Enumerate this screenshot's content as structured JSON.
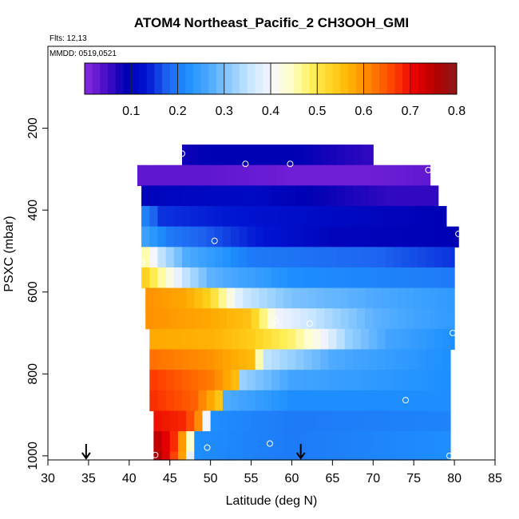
{
  "chart_data": {
    "type": "heatmap",
    "title": "ATOM4 Northeast_Pacific_2 CH3OOH_GMI",
    "flights_label": "Flts: 12,13",
    "date_label": "MMDD: 0519,0521",
    "xlabel": "Latitude (deg N)",
    "ylabel": "PSXC (mbar)",
    "xlim": [
      30,
      85
    ],
    "ylim": [
      1010,
      0
    ],
    "x_ticks": [
      30,
      35,
      40,
      45,
      50,
      55,
      60,
      65,
      70,
      75,
      80,
      85
    ],
    "y_ticks": [
      200,
      400,
      600,
      800,
      1000
    ],
    "colorbar": {
      "range": [
        0,
        0.8
      ],
      "ticks": [
        0.1,
        0.2,
        0.3,
        0.4,
        0.5,
        0.6,
        0.7,
        0.8
      ],
      "colors": [
        "#8a2be2",
        "#4b0ec8",
        "#0000b4",
        "#0014d2",
        "#1e64f0",
        "#1e90ff",
        "#4aa8ff",
        "#8ccaff",
        "#c8e6ff",
        "#f5f5ff",
        "#ffffc8",
        "#ffef5a",
        "#ffd21e",
        "#ffaa00",
        "#ff7800",
        "#ff3c00",
        "#e60000",
        "#b40000",
        "#8b1a1a"
      ]
    },
    "layers": [
      {
        "p_top": 240,
        "p_bot": 290,
        "lat_min": 46.5,
        "lat_max": 70,
        "values": [
          [
            46.5,
            0.08
          ],
          [
            50,
            0.09
          ],
          [
            60,
            0.09
          ],
          [
            70,
            0.06
          ]
        ]
      },
      {
        "p_top": 290,
        "p_bot": 340,
        "lat_min": 41,
        "lat_max": 77,
        "values": [
          [
            41,
            0.03
          ],
          [
            50,
            0.03
          ],
          [
            60,
            0.02
          ],
          [
            70,
            0.02
          ],
          [
            77,
            0.03
          ]
        ]
      },
      {
        "p_top": 340,
        "p_bot": 390,
        "lat_min": 41.5,
        "lat_max": 78,
        "values": [
          [
            41.5,
            0.1
          ],
          [
            55,
            0.11
          ],
          [
            65,
            0.08
          ],
          [
            72,
            0.06
          ],
          [
            78,
            0.06
          ]
        ]
      },
      {
        "p_top": 390,
        "p_bot": 440,
        "lat_min": 41.5,
        "lat_max": 79,
        "values": [
          [
            41.5,
            0.22
          ],
          [
            44,
            0.15
          ],
          [
            55,
            0.13
          ],
          [
            65,
            0.11
          ],
          [
            79,
            0.09
          ]
        ]
      },
      {
        "p_top": 440,
        "p_bot": 490,
        "lat_min": 41.5,
        "lat_max": 80.5,
        "values": [
          [
            41.5,
            0.26
          ],
          [
            45,
            0.2
          ],
          [
            55,
            0.14
          ],
          [
            65,
            0.1
          ],
          [
            80.5,
            0.09
          ]
        ]
      },
      {
        "p_top": 490,
        "p_bot": 540,
        "lat_min": 41.5,
        "lat_max": 80,
        "values": [
          [
            41.5,
            0.48
          ],
          [
            44,
            0.35
          ],
          [
            47,
            0.27
          ],
          [
            55,
            0.2
          ],
          [
            70,
            0.18
          ],
          [
            80,
            0.15
          ]
        ]
      },
      {
        "p_top": 540,
        "p_bot": 590,
        "lat_min": 41.5,
        "lat_max": 80,
        "values": [
          [
            41.5,
            0.55
          ],
          [
            44,
            0.46
          ],
          [
            47,
            0.35
          ],
          [
            50,
            0.28
          ],
          [
            60,
            0.22
          ],
          [
            80,
            0.2
          ]
        ]
      },
      {
        "p_top": 590,
        "p_bot": 640,
        "lat_min": 42,
        "lat_max": 80,
        "values": [
          [
            42,
            0.6
          ],
          [
            47,
            0.58
          ],
          [
            50,
            0.53
          ],
          [
            54,
            0.36
          ],
          [
            60,
            0.3
          ],
          [
            80,
            0.24
          ]
        ]
      },
      {
        "p_top": 640,
        "p_bot": 690,
        "lat_min": 42,
        "lat_max": 80,
        "values": [
          [
            42,
            0.6
          ],
          [
            50,
            0.58
          ],
          [
            55,
            0.55
          ],
          [
            58,
            0.4
          ],
          [
            65,
            0.33
          ],
          [
            70,
            0.28
          ],
          [
            80,
            0.24
          ]
        ]
      },
      {
        "p_top": 690,
        "p_bot": 740,
        "lat_min": 42.5,
        "lat_max": 80,
        "values": [
          [
            42.5,
            0.58
          ],
          [
            50,
            0.57
          ],
          [
            55,
            0.54
          ],
          [
            60,
            0.48
          ],
          [
            63,
            0.42
          ],
          [
            67,
            0.32
          ],
          [
            72,
            0.26
          ],
          [
            80,
            0.22
          ]
        ]
      },
      {
        "p_top": 740,
        "p_bot": 790,
        "lat_min": 42.5,
        "lat_max": 79.5,
        "values": [
          [
            42.5,
            0.63
          ],
          [
            50,
            0.6
          ],
          [
            55,
            0.56
          ],
          [
            57,
            0.35
          ],
          [
            65,
            0.27
          ],
          [
            79.5,
            0.22
          ]
        ]
      },
      {
        "p_top": 790,
        "p_bot": 840,
        "lat_min": 42.5,
        "lat_max": 79.5,
        "values": [
          [
            42.5,
            0.67
          ],
          [
            50,
            0.62
          ],
          [
            53,
            0.56
          ],
          [
            54,
            0.32
          ],
          [
            60,
            0.26
          ],
          [
            79.5,
            0.22
          ]
        ]
      },
      {
        "p_top": 840,
        "p_bot": 890,
        "lat_min": 42.5,
        "lat_max": 79.5,
        "values": [
          [
            42.5,
            0.68
          ],
          [
            48,
            0.64
          ],
          [
            51,
            0.55
          ],
          [
            52,
            0.27
          ],
          [
            60,
            0.22
          ],
          [
            79.5,
            0.22
          ]
        ]
      },
      {
        "p_top": 890,
        "p_bot": 940,
        "lat_min": 43,
        "lat_max": 79.5,
        "values": [
          [
            43,
            0.7
          ],
          [
            47,
            0.68
          ],
          [
            49,
            0.58
          ],
          [
            50,
            0.22
          ],
          [
            60,
            0.2
          ],
          [
            79.5,
            0.21
          ]
        ]
      },
      {
        "p_top": 940,
        "p_bot": 990,
        "lat_min": 43,
        "lat_max": 79.5,
        "values": [
          [
            43,
            0.76
          ],
          [
            45.5,
            0.68
          ],
          [
            47,
            0.55
          ],
          [
            48.5,
            0.22
          ],
          [
            60,
            0.2
          ],
          [
            79.5,
            0.22
          ]
        ]
      },
      {
        "p_top": 990,
        "p_bot": 1010,
        "lat_min": 43,
        "lat_max": 79.5,
        "values": [
          [
            43,
            0.78
          ],
          [
            45,
            0.7
          ],
          [
            47,
            0.55
          ],
          [
            48,
            0.22
          ],
          [
            60,
            0.2
          ],
          [
            79.5,
            0.22
          ]
        ]
      }
    ],
    "markers": [
      {
        "lat": 69.5,
        "p": 228
      },
      {
        "lat": 46.5,
        "p": 262
      },
      {
        "lat": 41,
        "p": 265
      },
      {
        "lat": 54.3,
        "p": 287
      },
      {
        "lat": 59.8,
        "p": 287
      },
      {
        "lat": 76.8,
        "p": 302
      },
      {
        "lat": 80.5,
        "p": 458
      },
      {
        "lat": 50.5,
        "p": 475
      },
      {
        "lat": 41.5,
        "p": 529
      },
      {
        "lat": 58,
        "p": 670
      },
      {
        "lat": 62.2,
        "p": 677
      },
      {
        "lat": 79.8,
        "p": 700
      },
      {
        "lat": 74,
        "p": 864
      },
      {
        "lat": 57.3,
        "p": 970
      },
      {
        "lat": 49.6,
        "p": 980
      },
      {
        "lat": 43.2,
        "p": 998
      },
      {
        "lat": 79.4,
        "p": 1000
      }
    ],
    "arrows": [
      {
        "lat": 34.7
      },
      {
        "lat": 61.1
      }
    ]
  }
}
